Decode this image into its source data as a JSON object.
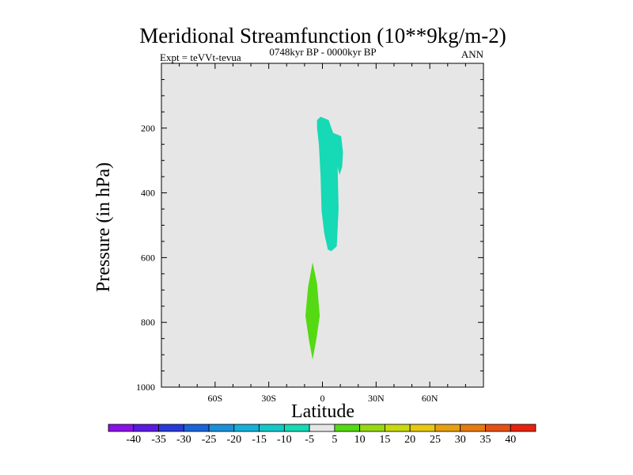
{
  "chart_data": {
    "type": "contour",
    "title": "Meridional Streamfunction (10**9kg/m-2)",
    "left_label": "Expt = teVVt-tevua",
    "center_label": "0748kyr BP - 0000kyr BP",
    "right_label": "ANN",
    "xlabel": "Latitude",
    "ylabel": "Pressure (in hPa)",
    "xlim": [
      -90,
      90
    ],
    "ylim": [
      1000,
      0
    ],
    "y_reversed": true,
    "xticks": [
      {
        "value": -60,
        "label": "60S"
      },
      {
        "value": -30,
        "label": "30S"
      },
      {
        "value": 0,
        "label": "0"
      },
      {
        "value": 30,
        "label": "30N"
      },
      {
        "value": 60,
        "label": "60N"
      }
    ],
    "yticks": [
      {
        "value": 200,
        "label": "200"
      },
      {
        "value": 400,
        "label": "400"
      },
      {
        "value": 600,
        "label": "600"
      },
      {
        "value": 800,
        "label": "800"
      },
      {
        "value": 1000,
        "label": "1000"
      }
    ],
    "background_color": "#e6e6e6",
    "filled_regions": [
      {
        "range": [
          -10,
          -5
        ],
        "color": "#16d9b5",
        "polygon": [
          [
            -3.0,
            175
          ],
          [
            -1.0,
            165
          ],
          [
            3.5,
            175
          ],
          [
            5.0,
            200
          ],
          [
            6.0,
            215
          ],
          [
            10.5,
            225
          ],
          [
            11.5,
            275
          ],
          [
            11.0,
            320
          ],
          [
            9.5,
            345
          ],
          [
            8.5,
            320
          ],
          [
            9.0,
            450
          ],
          [
            8.0,
            565
          ],
          [
            5.0,
            580
          ],
          [
            3.0,
            575
          ],
          [
            1.0,
            525
          ],
          [
            -0.5,
            455
          ],
          [
            -1.0,
            350
          ],
          [
            -2.0,
            250
          ],
          [
            -3.0,
            200
          ]
        ]
      },
      {
        "range": [
          5,
          10
        ],
        "color": "#55d912",
        "polygon": [
          [
            -5.5,
            615
          ],
          [
            -3.0,
            680
          ],
          [
            -1.5,
            780
          ],
          [
            -3.5,
            855
          ],
          [
            -5.5,
            915
          ],
          [
            -7.5,
            855
          ],
          [
            -9.5,
            780
          ],
          [
            -8.0,
            690
          ]
        ]
      }
    ],
    "colorbar": {
      "levels": [
        -40,
        -35,
        -30,
        -25,
        -20,
        -15,
        -10,
        -5,
        5,
        10,
        15,
        20,
        25,
        30,
        35,
        40
      ],
      "colors": [
        "#8a11e8",
        "#5a1ae0",
        "#2a3ad8",
        "#1a64d8",
        "#1a90d8",
        "#14b0d8",
        "#14c8c8",
        "#16d9b5",
        "#e6e6e6",
        "#55d912",
        "#96d912",
        "#c8d910",
        "#e6c810",
        "#e6a010",
        "#e67a10",
        "#e65014",
        "#e6220e"
      ]
    }
  }
}
